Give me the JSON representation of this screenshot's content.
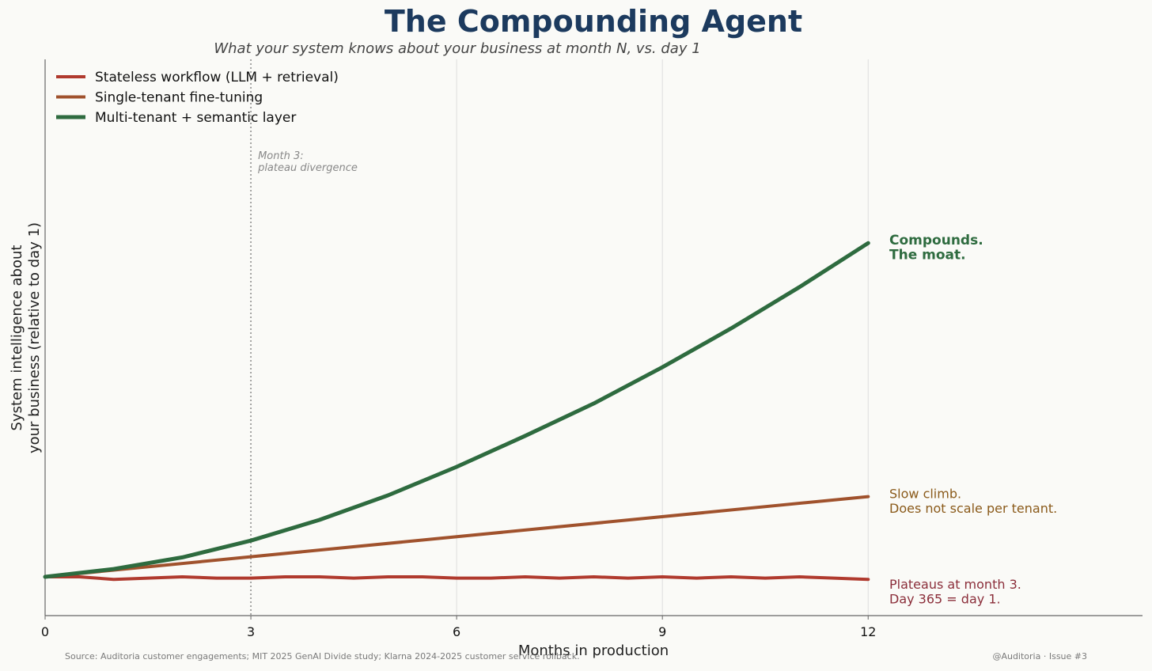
{
  "chart_data": {
    "type": "line",
    "title": "The Compounding Agent",
    "subtitle": "What your system knows about your business at month N, vs. day 1",
    "xlabel": "Months in production",
    "ylabel_lines": [
      "System intelligence about",
      "your business (relative to day 1)"
    ],
    "xlim": [
      0,
      16
    ],
    "ylim": [
      0.7,
      5.0
    ],
    "x_ticks": [
      0,
      3,
      6,
      9,
      12
    ],
    "grid": "vertical at x ticks",
    "legend_position": "top-left",
    "series": [
      {
        "name": "Stateless workflow (LLM + retrieval)",
        "color": "#b03a2e",
        "x": [
          0,
          0.5,
          1,
          1.5,
          2,
          2.5,
          3,
          3.5,
          4,
          4.5,
          5,
          5.5,
          6,
          6.5,
          7,
          7.5,
          8,
          8.5,
          9,
          9.5,
          10,
          10.5,
          11,
          11.5,
          12
        ],
        "y": [
          1.0,
          1.0,
          0.98,
          0.99,
          1.0,
          0.99,
          0.99,
          1.0,
          1.0,
          0.99,
          1.0,
          1.0,
          0.99,
          0.99,
          1.0,
          0.99,
          1.0,
          0.99,
          1.0,
          0.99,
          1.0,
          0.99,
          1.0,
          0.99,
          0.98
        ]
      },
      {
        "name": "Single-tenant fine-tuning",
        "color": "#a0522d",
        "x": [
          0,
          12
        ],
        "y": [
          1.0,
          1.62
        ]
      },
      {
        "name": "Multi-tenant + semantic layer",
        "color": "#2e6b3f",
        "x": [
          0,
          1,
          2,
          3,
          4,
          5,
          6,
          7,
          8,
          9,
          10,
          11,
          12
        ],
        "y": [
          1.0,
          1.06,
          1.15,
          1.28,
          1.44,
          1.63,
          1.85,
          2.09,
          2.34,
          2.62,
          2.92,
          3.24,
          3.58
        ]
      }
    ],
    "vline": {
      "x": 3,
      "note_lines": [
        "Month 3:",
        "plateau divergence"
      ],
      "color": "#888888"
    },
    "end_labels": [
      {
        "lines": [
          "Compounds.",
          "The moat."
        ],
        "color": "#2e6b3f"
      },
      {
        "lines": [
          "Slow climb.",
          "Does not scale per tenant."
        ],
        "color": "#8a5a1a"
      },
      {
        "lines": [
          "Plateaus at month 3.",
          "Day 365 = day 1."
        ],
        "color": "#8b2e3a"
      }
    ],
    "footer": {
      "source": "Source: Auditoria customer engagements; MIT 2025 GenAI Divide study; Klarna 2024-2025 customer service rollback.",
      "credit": "@Auditoria · Issue #3"
    },
    "colors": {
      "title": "#1c3a5e",
      "subtitle": "#444444",
      "grid": "#dddddd",
      "axis": "#666666"
    }
  }
}
